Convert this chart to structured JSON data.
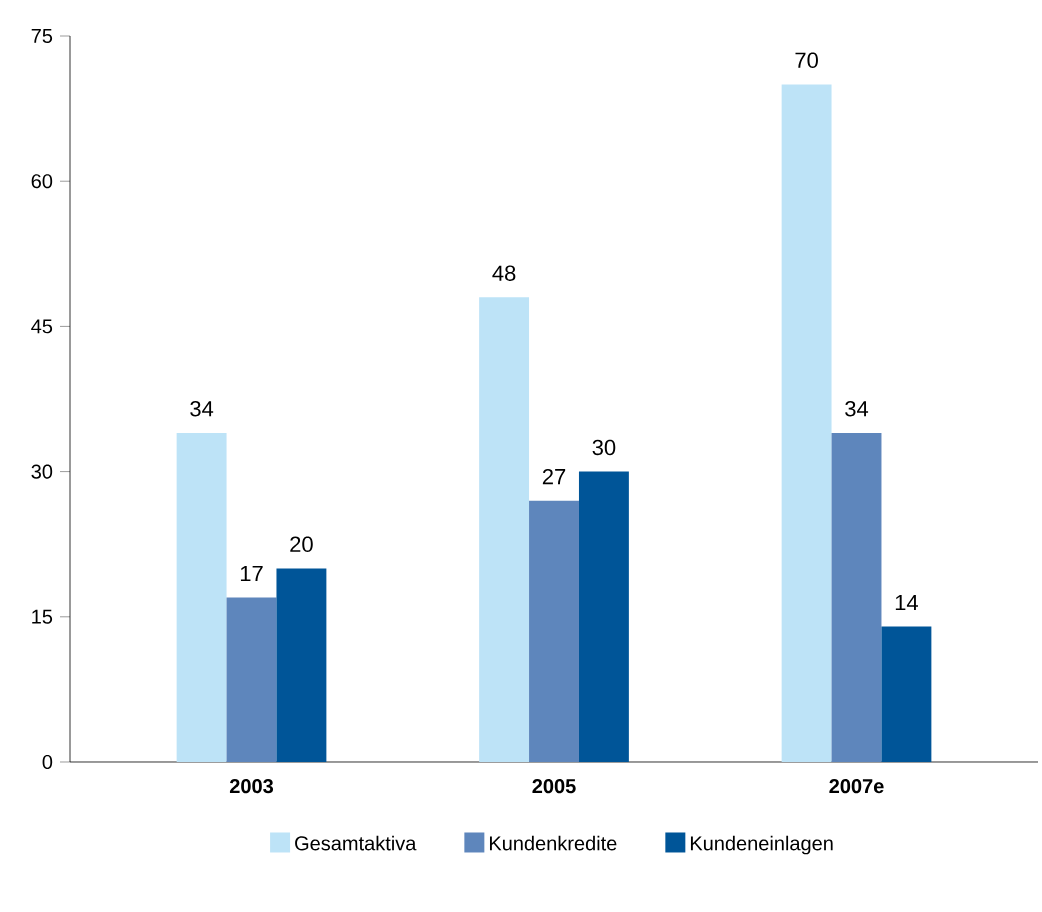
{
  "chart_data": {
    "type": "bar",
    "categories": [
      "2003",
      "2005",
      "2007e"
    ],
    "series": [
      {
        "name": "Gesamtaktiva",
        "color": "#bde3f7",
        "values": [
          34,
          48,
          70
        ]
      },
      {
        "name": "Kundenkredite",
        "color": "#5e86bc",
        "values": [
          17,
          27,
          34
        ]
      },
      {
        "name": "Kundeneinlagen",
        "color": "#005598",
        "values": [
          20,
          30,
          14
        ]
      }
    ],
    "ylim": [
      0,
      75
    ],
    "yticks": [
      0,
      15,
      30,
      45,
      60,
      75
    ],
    "data_labels": true,
    "grid": false,
    "legend": "bottom"
  }
}
